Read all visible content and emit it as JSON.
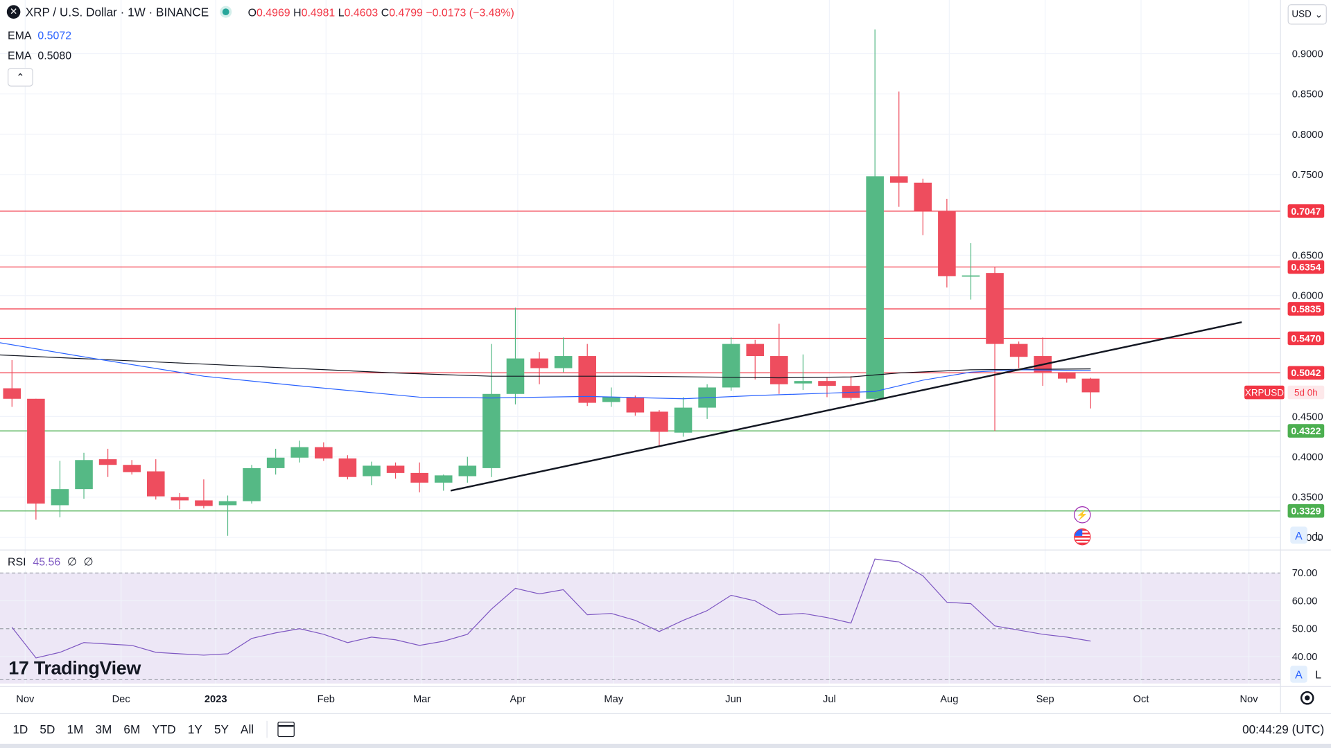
{
  "header": {
    "symbol_title": "XRP / U.S. Dollar · 1W · BINANCE",
    "logo_glyph": "✕",
    "open_label": "O",
    "open": "0.4969",
    "high_label": "H",
    "high": "0.4981",
    "low_label": "L",
    "low": "0.4603",
    "close_label": "C",
    "close": "0.4799",
    "change": "−0.0173 (−3.48%)",
    "status_color": "#26a69a"
  },
  "indicators": {
    "ema1_label": "EMA",
    "ema1_value": "0.5072",
    "ema1_color": "#2962ff",
    "ema2_label": "EMA",
    "ema2_value": "0.5080",
    "ema2_color": "#131722",
    "collapse_glyph": "⌃"
  },
  "currency_button": {
    "label": "USD",
    "glyph": "⌄"
  },
  "rsi": {
    "name": "RSI",
    "value": "45.56",
    "extra1": "∅",
    "extra2": "∅",
    "color": "#7e57c2"
  },
  "branding": {
    "logo_mark": "17",
    "name": "TradingView"
  },
  "scale_buttons": {
    "auto": "A",
    "log": "L"
  },
  "event_icons": {
    "bolt": "⚡"
  },
  "bottom_bar": {
    "ranges": [
      "1D",
      "5D",
      "1M",
      "3M",
      "6M",
      "YTD",
      "1Y",
      "5Y",
      "All"
    ],
    "clock": "00:44:29 (UTC)"
  },
  "chart_data": [
    {
      "type": "candlestick",
      "title": "XRP / U.S. Dollar · 1W · BINANCE",
      "x_ticks": [
        {
          "label": "Nov",
          "week": 0.05,
          "bold": false
        },
        {
          "label": "Dec",
          "week": 4.05,
          "bold": false
        },
        {
          "label": "2023",
          "week": 8.0,
          "bold": true
        },
        {
          "label": "Feb",
          "week": 12.6,
          "bold": false
        },
        {
          "label": "Mar",
          "week": 16.6,
          "bold": false
        },
        {
          "label": "Apr",
          "week": 20.6,
          "bold": false
        },
        {
          "label": "May",
          "week": 24.6,
          "bold": false
        },
        {
          "label": "Jun",
          "week": 29.6,
          "bold": false
        },
        {
          "label": "Jul",
          "week": 33.6,
          "bold": false
        },
        {
          "label": "Aug",
          "week": 38.6,
          "bold": false
        },
        {
          "label": "Sep",
          "week": 42.6,
          "bold": false
        },
        {
          "label": "Oct",
          "week": 46.6,
          "bold": false
        },
        {
          "label": "Nov",
          "week": 51.1,
          "bold": false
        }
      ],
      "y_ticks": [
        "0.9000",
        "0.8500",
        "0.8000",
        "0.7500",
        "0.6500",
        "0.6000",
        "0.4500",
        "0.4000",
        "0.3500",
        "0.3000"
      ],
      "ylim": [
        0.285,
        0.935
      ],
      "xlim_weeks": [
        -1.0,
        52.4
      ],
      "candles": [
        {
          "o": 0.485,
          "h": 0.52,
          "l": 0.462,
          "c": 0.472
        },
        {
          "o": 0.472,
          "h": 0.472,
          "l": 0.322,
          "c": 0.342
        },
        {
          "o": 0.34,
          "h": 0.395,
          "l": 0.325,
          "c": 0.36
        },
        {
          "o": 0.36,
          "h": 0.405,
          "l": 0.348,
          "c": 0.396
        },
        {
          "o": 0.397,
          "h": 0.41,
          "l": 0.375,
          "c": 0.39
        },
        {
          "o": 0.39,
          "h": 0.396,
          "l": 0.378,
          "c": 0.381
        },
        {
          "o": 0.382,
          "h": 0.397,
          "l": 0.347,
          "c": 0.351
        },
        {
          "o": 0.35,
          "h": 0.355,
          "l": 0.335,
          "c": 0.346
        },
        {
          "o": 0.346,
          "h": 0.372,
          "l": 0.336,
          "c": 0.339
        },
        {
          "o": 0.34,
          "h": 0.352,
          "l": 0.302,
          "c": 0.345
        },
        {
          "o": 0.345,
          "h": 0.39,
          "l": 0.342,
          "c": 0.386
        },
        {
          "o": 0.386,
          "h": 0.41,
          "l": 0.378,
          "c": 0.399
        },
        {
          "o": 0.399,
          "h": 0.42,
          "l": 0.393,
          "c": 0.412
        },
        {
          "o": 0.412,
          "h": 0.418,
          "l": 0.395,
          "c": 0.398
        },
        {
          "o": 0.398,
          "h": 0.402,
          "l": 0.372,
          "c": 0.375
        },
        {
          "o": 0.376,
          "h": 0.394,
          "l": 0.365,
          "c": 0.389
        },
        {
          "o": 0.389,
          "h": 0.393,
          "l": 0.373,
          "c": 0.38
        },
        {
          "o": 0.38,
          "h": 0.393,
          "l": 0.356,
          "c": 0.368
        },
        {
          "o": 0.368,
          "h": 0.378,
          "l": 0.358,
          "c": 0.377
        },
        {
          "o": 0.376,
          "h": 0.4,
          "l": 0.368,
          "c": 0.389
        },
        {
          "o": 0.386,
          "h": 0.54,
          "l": 0.375,
          "c": 0.478
        },
        {
          "o": 0.478,
          "h": 0.585,
          "l": 0.465,
          "c": 0.522
        },
        {
          "o": 0.522,
          "h": 0.53,
          "l": 0.49,
          "c": 0.51
        },
        {
          "o": 0.51,
          "h": 0.548,
          "l": 0.505,
          "c": 0.525
        },
        {
          "o": 0.525,
          "h": 0.54,
          "l": 0.463,
          "c": 0.467
        },
        {
          "o": 0.468,
          "h": 0.486,
          "l": 0.462,
          "c": 0.474
        },
        {
          "o": 0.474,
          "h": 0.476,
          "l": 0.451,
          "c": 0.455
        },
        {
          "o": 0.456,
          "h": 0.458,
          "l": 0.413,
          "c": 0.431
        },
        {
          "o": 0.43,
          "h": 0.474,
          "l": 0.425,
          "c": 0.461
        },
        {
          "o": 0.461,
          "h": 0.49,
          "l": 0.447,
          "c": 0.486
        },
        {
          "o": 0.486,
          "h": 0.548,
          "l": 0.482,
          "c": 0.54
        },
        {
          "o": 0.54,
          "h": 0.545,
          "l": 0.496,
          "c": 0.525
        },
        {
          "o": 0.525,
          "h": 0.565,
          "l": 0.478,
          "c": 0.49
        },
        {
          "o": 0.491,
          "h": 0.527,
          "l": 0.483,
          "c": 0.494
        },
        {
          "o": 0.494,
          "h": 0.498,
          "l": 0.474,
          "c": 0.488
        },
        {
          "o": 0.488,
          "h": 0.5,
          "l": 0.47,
          "c": 0.473
        },
        {
          "o": 0.472,
          "h": 0.93,
          "l": 0.468,
          "c": 0.748
        },
        {
          "o": 0.748,
          "h": 0.853,
          "l": 0.71,
          "c": 0.74
        },
        {
          "o": 0.74,
          "h": 0.745,
          "l": 0.675,
          "c": 0.705
        },
        {
          "o": 0.705,
          "h": 0.72,
          "l": 0.61,
          "c": 0.624
        },
        {
          "o": 0.624,
          "h": 0.665,
          "l": 0.595,
          "c": 0.625
        },
        {
          "o": 0.628,
          "h": 0.635,
          "l": 0.432,
          "c": 0.54
        },
        {
          "o": 0.54,
          "h": 0.543,
          "l": 0.51,
          "c": 0.524
        },
        {
          "o": 0.525,
          "h": 0.548,
          "l": 0.488,
          "c": 0.505
        },
        {
          "o": 0.505,
          "h": 0.505,
          "l": 0.492,
          "c": 0.497
        },
        {
          "o": 0.497,
          "h": 0.498,
          "l": 0.46,
          "c": 0.48
        }
      ],
      "ema_blue": [
        [
          -1,
          0.544
        ],
        [
          3,
          0.524
        ],
        [
          8,
          0.5
        ],
        [
          12,
          0.488
        ],
        [
          17,
          0.474
        ],
        [
          20,
          0.473
        ],
        [
          24,
          0.475
        ],
        [
          28,
          0.472
        ],
        [
          31,
          0.476
        ],
        [
          34,
          0.479
        ],
        [
          36,
          0.481
        ],
        [
          38,
          0.495
        ],
        [
          40,
          0.505
        ],
        [
          42,
          0.508
        ],
        [
          45,
          0.507
        ]
      ],
      "ema_black": [
        [
          -1,
          0.527
        ],
        [
          8,
          0.515
        ],
        [
          16,
          0.504
        ],
        [
          20,
          0.5
        ],
        [
          26,
          0.5
        ],
        [
          32,
          0.498
        ],
        [
          35,
          0.499
        ],
        [
          37,
          0.504
        ],
        [
          40,
          0.508
        ],
        [
          45,
          0.509
        ]
      ],
      "trendline": {
        "from": [
          17.8,
          0.358
        ],
        "to": [
          50.8,
          0.567
        ],
        "color": "#131722"
      },
      "horizontal_levels": [
        {
          "value": 0.7047,
          "label": "0.7047",
          "color": "#f23645"
        },
        {
          "value": 0.6354,
          "label": "0.6354",
          "color": "#f23645"
        },
        {
          "value": 0.5835,
          "label": "0.5835",
          "color": "#f23645"
        },
        {
          "value": 0.547,
          "label": "0.5470",
          "color": "#f23645"
        },
        {
          "value": 0.5042,
          "label": "0.5042",
          "color": "#f23645"
        },
        {
          "value": 0.4322,
          "label": "0.4322",
          "color": "#4caf50"
        },
        {
          "value": 0.3329,
          "label": "0.3329",
          "color": "#4caf50"
        }
      ],
      "price_tag": {
        "value": 0.4799,
        "symbol": "XRPUSD",
        "countdown": "5d 0h",
        "color": "#f23645"
      },
      "up_color": "#55b985",
      "down_color": "#ee4d5e",
      "grid": true
    },
    {
      "type": "line",
      "title": "RSI",
      "y_ticks": [
        "70.00",
        "60.00",
        "50.00",
        "40.00"
      ],
      "ylim": [
        30.3,
        77.2
      ],
      "band": [
        30,
        70
      ],
      "band_color": "#ede7f6",
      "line_color": "#7e57c2",
      "values": [
        50.5,
        39.5,
        41.5,
        45.0,
        44.5,
        44.0,
        41.5,
        41.0,
        40.5,
        41.0,
        46.5,
        48.5,
        50.0,
        48.0,
        45.0,
        47.0,
        46.0,
        44.0,
        45.5,
        48.0,
        57.0,
        64.5,
        62.5,
        64.0,
        55.0,
        55.5,
        53.0,
        49.0,
        53.0,
        56.5,
        62.0,
        60.0,
        55.0,
        55.5,
        54.0,
        52.0,
        75.0,
        74.0,
        69.0,
        59.5,
        59.0,
        51.0,
        49.5,
        48.0,
        47.0,
        45.56
      ]
    }
  ]
}
